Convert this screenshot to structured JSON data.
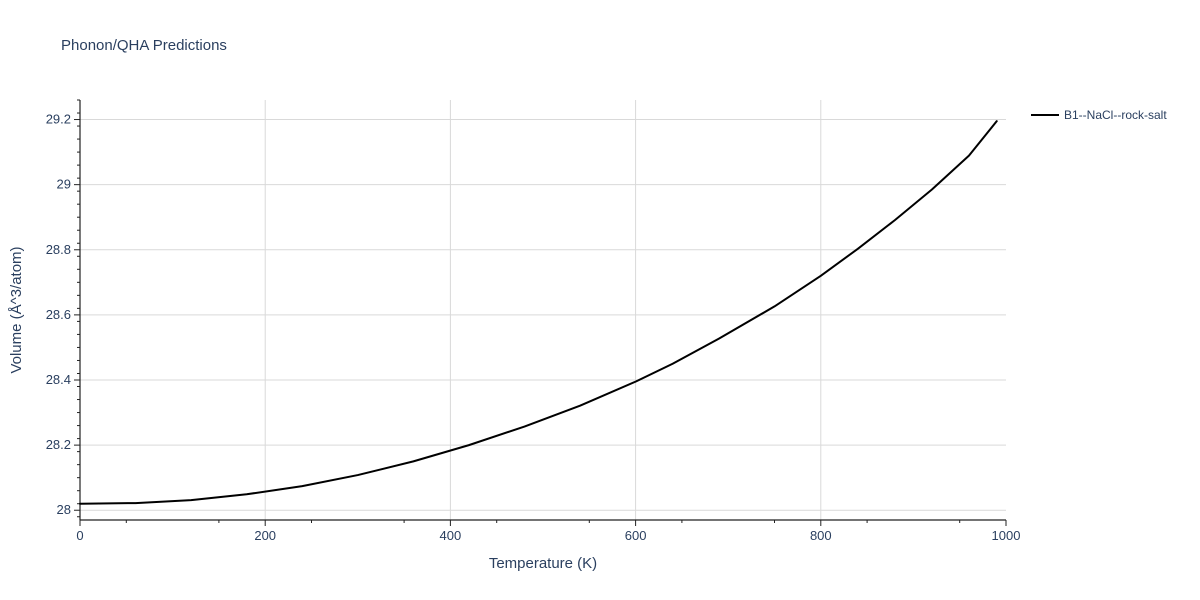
{
  "chart_data": {
    "type": "line",
    "title": "Phonon/QHA Predictions",
    "xlabel": "Temperature (K)",
    "ylabel": "Volume (Å^3/atom)",
    "xlim": [
      0,
      1000
    ],
    "ylim": [
      27.97,
      29.26
    ],
    "x_ticks": [
      0,
      200,
      400,
      600,
      800,
      1000
    ],
    "x_tick_labels": [
      "0",
      "200",
      "400",
      "600",
      "800",
      "1000"
    ],
    "y_ticks": [
      28,
      28.2,
      28.4,
      28.6,
      28.8,
      29,
      29.2
    ],
    "y_tick_labels": [
      "28",
      "28.2",
      "28.4",
      "28.6",
      "28.8",
      "29",
      "29.2"
    ],
    "grid": true,
    "legend_position": "top-right-outside",
    "series": [
      {
        "name": "B1--NaCl--rock-salt",
        "color": "#000000",
        "x": [
          0,
          60,
          120,
          180,
          240,
          300,
          360,
          420,
          480,
          540,
          600,
          640,
          690,
          750,
          800,
          840,
          880,
          920,
          960,
          990
        ],
        "y": [
          28.02,
          28.022,
          28.031,
          28.049,
          28.074,
          28.108,
          28.15,
          28.2,
          28.257,
          28.321,
          28.395,
          28.45,
          28.527,
          28.626,
          28.72,
          28.803,
          28.891,
          28.985,
          29.089,
          29.195
        ]
      }
    ]
  }
}
